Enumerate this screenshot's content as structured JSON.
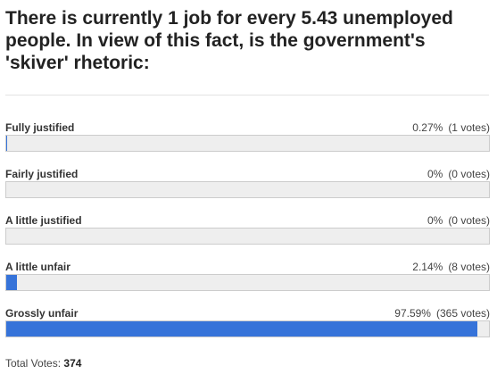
{
  "poll": {
    "question": "There is currently 1 job for every 5.43 unemployed people. In view of this fact, is the government's 'skiver' rhetoric:",
    "options": [
      {
        "label": "Fully justified",
        "percent": 0.27,
        "percent_label": "0.27%",
        "votes_label": "(1 votes)"
      },
      {
        "label": "Fairly justified",
        "percent": 0,
        "percent_label": "0%",
        "votes_label": "(0 votes)"
      },
      {
        "label": "A little justified",
        "percent": 0,
        "percent_label": "0%",
        "votes_label": "(0 votes)"
      },
      {
        "label": "A little unfair",
        "percent": 2.14,
        "percent_label": "2.14%",
        "votes_label": "(8 votes)"
      },
      {
        "label": "Grossly unfair",
        "percent": 97.59,
        "percent_label": "97.59%",
        "votes_label": "(365 votes)"
      }
    ],
    "total_label": "Total Votes:",
    "total": "374"
  }
}
